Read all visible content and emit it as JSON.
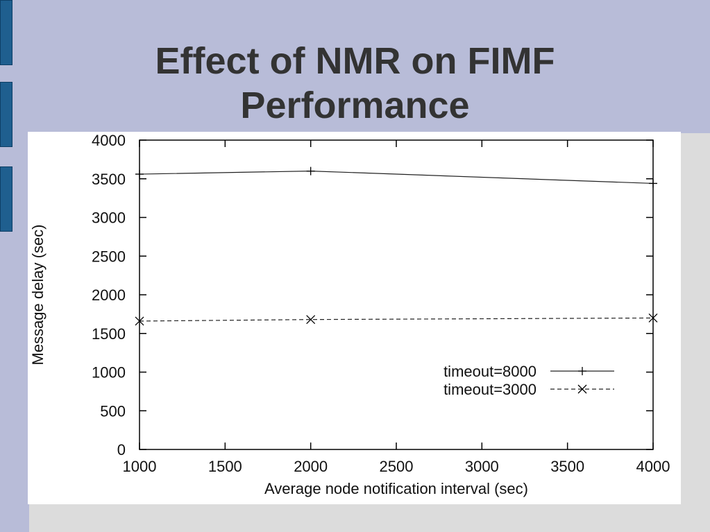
{
  "slide": {
    "title_line1": "Effect of NMR on FIMF",
    "title_line2": "Performance"
  },
  "colors": {
    "background": "#b8bcd8",
    "accent": "#1f5f8f",
    "plot_background": "#ffffff",
    "lower_panel": "#dcdcdc",
    "title_text": "#333333"
  },
  "chart_data": {
    "type": "line",
    "title": "",
    "xlabel": "Average node notification interval (sec)",
    "ylabel": "Message delay (sec)",
    "xlim": [
      1000,
      4000
    ],
    "ylim": [
      0,
      4000
    ],
    "xticks": [
      1000,
      1500,
      2000,
      2500,
      3000,
      3500,
      4000
    ],
    "yticks": [
      0,
      500,
      1000,
      1500,
      2000,
      2500,
      3000,
      3500,
      4000
    ],
    "grid": false,
    "legend_position": "bottom-right",
    "series": [
      {
        "name": "timeout=8000",
        "line_style": "solid",
        "marker": "plus",
        "x": [
          1000,
          2000,
          4000
        ],
        "y": [
          3560,
          3600,
          3440
        ]
      },
      {
        "name": "timeout=3000",
        "line_style": "dashed",
        "marker": "cross",
        "x": [
          1000,
          2000,
          4000
        ],
        "y": [
          1660,
          1680,
          1700
        ]
      }
    ]
  }
}
